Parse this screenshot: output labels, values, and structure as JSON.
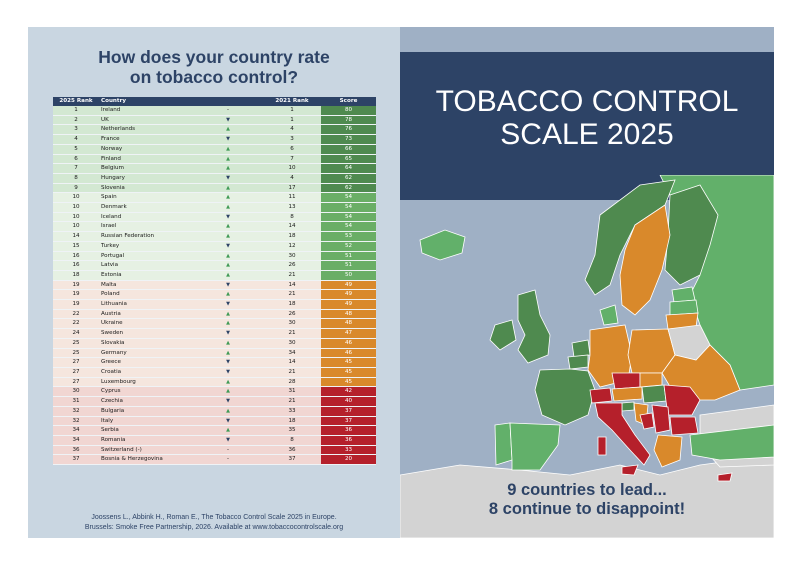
{
  "left": {
    "heading_line1": "How does your country rate",
    "heading_line2": "on tobacco control?",
    "table": {
      "headers": {
        "rank2025": "2025 Rank",
        "country": "Country",
        "rank2021": "2021 Rank",
        "score": "Score"
      },
      "rows": [
        {
          "rank": "1",
          "country": "Ireland",
          "trend": "eq",
          "rank2021": "1",
          "score": "80",
          "band": "green"
        },
        {
          "rank": "2",
          "country": "UK",
          "trend": "down",
          "rank2021": "1",
          "score": "78",
          "band": "green"
        },
        {
          "rank": "3",
          "country": "Netherlands",
          "trend": "up",
          "rank2021": "4",
          "score": "76",
          "band": "green"
        },
        {
          "rank": "4",
          "country": "France",
          "trend": "down",
          "rank2021": "3",
          "score": "73",
          "band": "green"
        },
        {
          "rank": "5",
          "country": "Norway",
          "trend": "up",
          "rank2021": "6",
          "score": "66",
          "band": "green"
        },
        {
          "rank": "6",
          "country": "Finland",
          "trend": "up",
          "rank2021": "7",
          "score": "65",
          "band": "green"
        },
        {
          "rank": "7",
          "country": "Belgium",
          "trend": "up",
          "rank2021": "10",
          "score": "64",
          "band": "green"
        },
        {
          "rank": "8",
          "country": "Hungary",
          "trend": "down",
          "rank2021": "4",
          "score": "62",
          "band": "green"
        },
        {
          "rank": "9",
          "country": "Slovenia",
          "trend": "up",
          "rank2021": "17",
          "score": "62",
          "band": "green"
        },
        {
          "rank": "10",
          "country": "Spain",
          "trend": "up",
          "rank2021": "11",
          "score": "54",
          "band": "lightgreen"
        },
        {
          "rank": "10",
          "country": "Denmark",
          "trend": "up",
          "rank2021": "13",
          "score": "54",
          "band": "lightgreen"
        },
        {
          "rank": "10",
          "country": "Iceland",
          "trend": "down",
          "rank2021": "8",
          "score": "54",
          "band": "lightgreen"
        },
        {
          "rank": "10",
          "country": "Israel",
          "trend": "up",
          "rank2021": "14",
          "score": "54",
          "band": "lightgreen"
        },
        {
          "rank": "14",
          "country": "Russian Federation",
          "trend": "up",
          "rank2021": "18",
          "score": "53",
          "band": "lightgreen"
        },
        {
          "rank": "15",
          "country": "Turkey",
          "trend": "down",
          "rank2021": "12",
          "score": "52",
          "band": "lightgreen"
        },
        {
          "rank": "16",
          "country": "Portugal",
          "trend": "up",
          "rank2021": "30",
          "score": "51",
          "band": "lightgreen"
        },
        {
          "rank": "16",
          "country": "Latvia",
          "trend": "up",
          "rank2021": "26",
          "score": "51",
          "band": "lightgreen"
        },
        {
          "rank": "18",
          "country": "Estonia",
          "trend": "up",
          "rank2021": "21",
          "score": "50",
          "band": "lightgreen"
        },
        {
          "rank": "19",
          "country": "Malta",
          "trend": "down",
          "rank2021": "14",
          "score": "49",
          "band": "orange"
        },
        {
          "rank": "19",
          "country": "Poland",
          "trend": "up",
          "rank2021": "21",
          "score": "49",
          "band": "orange"
        },
        {
          "rank": "19",
          "country": "Lithuania",
          "trend": "down",
          "rank2021": "18",
          "score": "49",
          "band": "orange"
        },
        {
          "rank": "22",
          "country": "Austria",
          "trend": "up",
          "rank2021": "26",
          "score": "48",
          "band": "orange"
        },
        {
          "rank": "22",
          "country": "Ukraine",
          "trend": "up",
          "rank2021": "30",
          "score": "48",
          "band": "orange"
        },
        {
          "rank": "24",
          "country": "Sweden",
          "trend": "down",
          "rank2021": "21",
          "score": "47",
          "band": "orange"
        },
        {
          "rank": "25",
          "country": "Slovakia",
          "trend": "up",
          "rank2021": "30",
          "score": "46",
          "band": "orange"
        },
        {
          "rank": "25",
          "country": "Germany",
          "trend": "up",
          "rank2021": "34",
          "score": "46",
          "band": "orange"
        },
        {
          "rank": "27",
          "country": "Greece",
          "trend": "down",
          "rank2021": "14",
          "score": "45",
          "band": "orange"
        },
        {
          "rank": "27",
          "country": "Croatia",
          "trend": "down",
          "rank2021": "21",
          "score": "45",
          "band": "orange"
        },
        {
          "rank": "27",
          "country": "Luxembourg",
          "trend": "up",
          "rank2021": "28",
          "score": "45",
          "band": "orange"
        },
        {
          "rank": "30",
          "country": "Cyprus",
          "trend": "up",
          "rank2021": "31",
          "score": "42",
          "band": "red"
        },
        {
          "rank": "31",
          "country": "Czechia",
          "trend": "down",
          "rank2021": "21",
          "score": "40",
          "band": "red"
        },
        {
          "rank": "32",
          "country": "Bulgaria",
          "trend": "up",
          "rank2021": "33",
          "score": "37",
          "band": "red"
        },
        {
          "rank": "32",
          "country": "Italy",
          "trend": "down",
          "rank2021": "18",
          "score": "37",
          "band": "red"
        },
        {
          "rank": "34",
          "country": "Serbia",
          "trend": "up",
          "rank2021": "35",
          "score": "36",
          "band": "red"
        },
        {
          "rank": "34",
          "country": "Romania",
          "trend": "down",
          "rank2021": "8",
          "score": "36",
          "band": "red"
        },
        {
          "rank": "36",
          "country": "Switzerland (-)",
          "trend": "eq",
          "rank2021": "36",
          "score": "33",
          "band": "red"
        },
        {
          "rank": "37",
          "country": "Bosnia & Herzegovina",
          "trend": "eq",
          "rank2021": "37",
          "score": "20",
          "band": "red"
        }
      ]
    },
    "citation_line1": "Joossens L., Abbink H., Roman E., The Tobacco Control Scale 2025 in Europe.",
    "citation_line2": "Brussels: Smoke Free Partnership, 2026. Available at www.tobaccocontrolscale.org"
  },
  "right": {
    "title_line1": "TOBACCO CONTROL",
    "title_line2": "SCALE 2025",
    "tagline_line1": "9 countries to lead...",
    "tagline_line2": "8 continue to disappoint!"
  },
  "colors": {
    "navy": "#2d4366",
    "dark_green": "#4f8a4f",
    "light_green": "#62b06a",
    "orange": "#d9892b",
    "red": "#b5202b",
    "sea": "#9fb0c5",
    "grey_land": "#d3d3d3",
    "row_green": "#d3e8d2",
    "row_lightgreen": "#e6f1e3",
    "row_orange": "#f5e6de",
    "row_red": "#f1d6d2",
    "score_green": "#4f8a4f",
    "score_lightgreen": "#6aae66",
    "score_orange": "#d9892b",
    "score_red": "#b5202b"
  },
  "icons": {
    "up": "triangle-up-icon",
    "down": "triangle-down-icon",
    "eq": "dash-icon"
  }
}
